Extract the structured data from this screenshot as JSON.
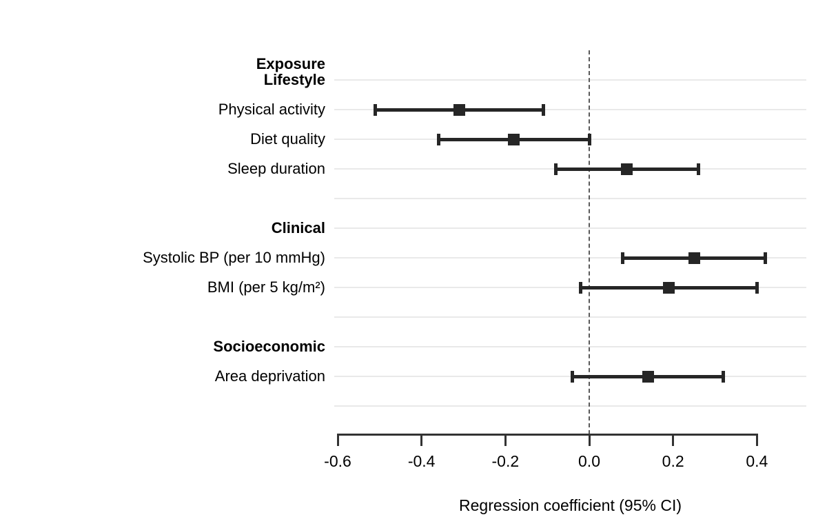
{
  "colors": {
    "background": "#ffffff",
    "gridline": "#e9e9e9",
    "axis": "#333333",
    "marker": "#262626",
    "reference_line": "#595959",
    "text": "#000000"
  },
  "chart_data": {
    "type": "scatter",
    "variant": "forest-plot",
    "title": "",
    "header": "Exposure",
    "xlabel": "Regression coefficient (95% CI)",
    "ylabel": "",
    "xlim": [
      -0.61,
      0.52
    ],
    "grid": "horizontal-only",
    "legend": "none",
    "reference_line_x": 0.0,
    "x_ticks": [
      {
        "value": -0.6,
        "label": "-0.6"
      },
      {
        "value": -0.4,
        "label": "-0.4"
      },
      {
        "value": -0.2,
        "label": "-0.2"
      },
      {
        "value": 0.0,
        "label": "0.0"
      },
      {
        "value": 0.2,
        "label": "0.2"
      },
      {
        "value": 0.4,
        "label": "0.4"
      }
    ],
    "groups": [
      {
        "name": "Lifestyle",
        "items": [
          {
            "label": "Physical activity",
            "estimate": -0.31,
            "ci_lower": -0.51,
            "ci_upper": -0.11
          },
          {
            "label": "Diet quality",
            "estimate": -0.18,
            "ci_lower": -0.36,
            "ci_upper": 0.0
          },
          {
            "label": "Sleep duration",
            "estimate": 0.09,
            "ci_lower": -0.08,
            "ci_upper": 0.26
          }
        ]
      },
      {
        "name": "Clinical",
        "items": [
          {
            "label": "Systolic BP (per 10 mmHg)",
            "estimate": 0.25,
            "ci_lower": 0.08,
            "ci_upper": 0.42
          },
          {
            "label": "BMI (per 5 kg/m²)",
            "estimate": 0.19,
            "ci_lower": -0.02,
            "ci_upper": 0.4
          }
        ]
      },
      {
        "name": "Socioeconomic",
        "items": [
          {
            "label": "Area deprivation",
            "estimate": 0.14,
            "ci_lower": -0.04,
            "ci_upper": 0.32
          }
        ]
      }
    ]
  }
}
